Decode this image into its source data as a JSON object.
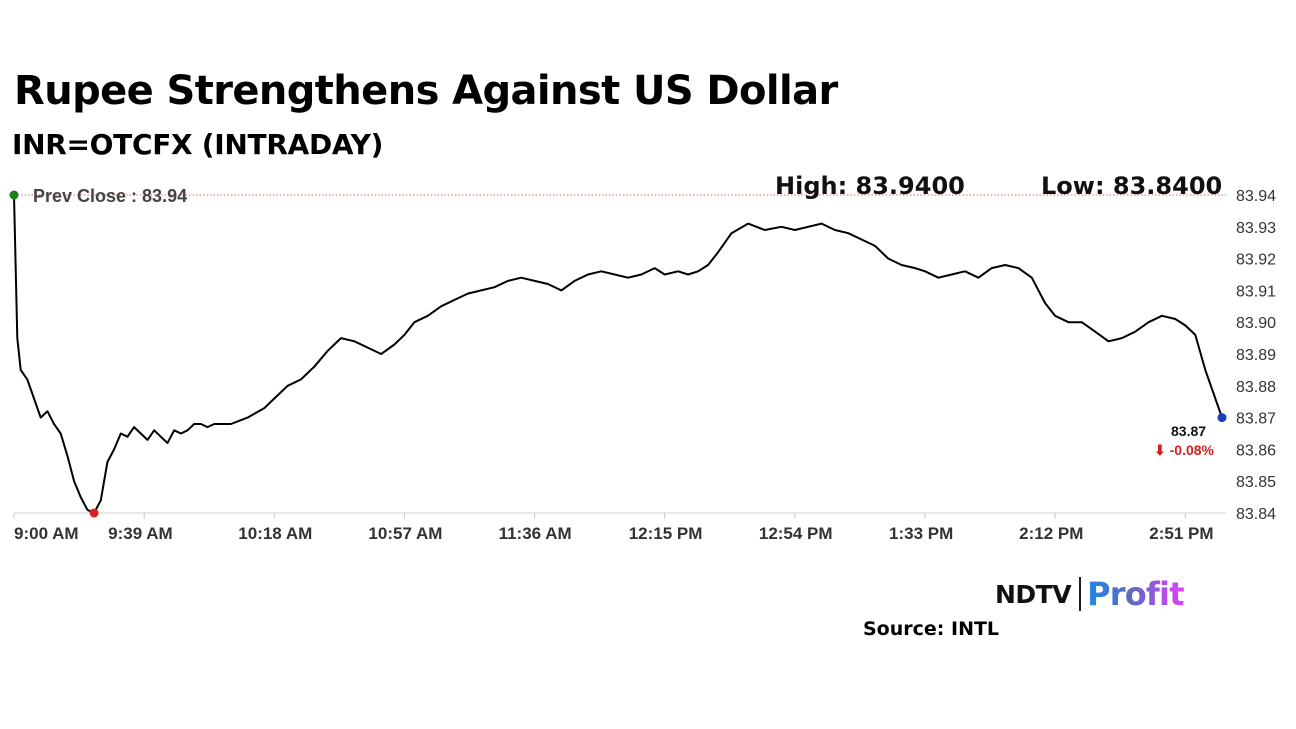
{
  "header": {
    "title": "Rupee Strengthens Against US Dollar",
    "subtitle": "INR=OTCFX (INTRADAY)"
  },
  "chart_data": {
    "type": "line",
    "title": "Rupee Strengthens Against US Dollar",
    "subtitle": "INR=OTCFX (INTRADAY)",
    "prev_close_label": "Prev Close : 83.94",
    "prev_close": 83.94,
    "high_label": "High: 83.9400",
    "low_label": "Low: 83.8400",
    "high": 83.94,
    "low": 83.84,
    "last_value_label": "83.87",
    "change_label": "⬇ -0.08%",
    "last_value": 83.87,
    "change_pct": -0.08,
    "ylim": [
      83.84,
      83.94
    ],
    "y_ticks": [
      "83.94",
      "83.93",
      "83.92",
      "83.91",
      "83.90",
      "83.89",
      "83.88",
      "83.87",
      "83.86",
      "83.85",
      "83.84"
    ],
    "x_ticks": [
      "9:00 AM",
      "9:39 AM",
      "10:18 AM",
      "10:57 AM",
      "11:36 AM",
      "12:15 PM",
      "12:54 PM",
      "1:33 PM",
      "2:12 PM",
      "2:51 PM"
    ],
    "x_start_minutes": 540,
    "x_end_minutes": 902,
    "x_tick_minutes": [
      540,
      579,
      618,
      657,
      696,
      735,
      774,
      813,
      852,
      891
    ],
    "series": [
      {
        "x": [
          "9:00 AM",
          "9:01 AM",
          "9:02 AM",
          "9:04 AM",
          "9:06 AM",
          "9:08 AM",
          "9:10 AM",
          "9:12 AM",
          "9:14 AM",
          "9:16 AM",
          "9:18 AM",
          "9:20 AM",
          "9:22 AM",
          "9:24 AM",
          "9:26 AM",
          "9:28 AM",
          "9:30 AM",
          "9:32 AM",
          "9:34 AM",
          "9:36 AM",
          "9:38 AM",
          "9:40 AM",
          "9:42 AM",
          "9:44 AM",
          "9:46 AM",
          "9:48 AM",
          "9:50 AM",
          "9:52 AM",
          "9:54 AM",
          "9:56 AM",
          "9:58 AM",
          "10:00 AM",
          "10:05 AM",
          "10:10 AM",
          "10:15 AM",
          "10:18 AM",
          "10:22 AM",
          "10:26 AM",
          "10:30 AM",
          "10:34 AM",
          "10:38 AM",
          "10:42 AM",
          "10:46 AM",
          "10:50 AM",
          "10:54 AM",
          "10:57 AM",
          "11:00 AM",
          "11:04 AM",
          "11:08 AM",
          "11:12 AM",
          "11:16 AM",
          "11:20 AM",
          "11:24 AM",
          "11:28 AM",
          "11:32 AM",
          "11:36 AM",
          "11:40 AM",
          "11:44 AM",
          "11:48 AM",
          "11:52 AM",
          "11:56 AM",
          "12:00 PM",
          "12:04 PM",
          "12:08 PM",
          "12:12 PM",
          "12:15 PM",
          "12:19 PM",
          "12:22 PM",
          "12:25 PM",
          "12:28 PM",
          "12:31 PM",
          "12:35 PM",
          "12:40 PM",
          "12:45 PM",
          "12:50 PM",
          "12:54 PM",
          "12:58 PM",
          "1:02 PM",
          "1:06 PM",
          "1:10 PM",
          "1:14 PM",
          "1:18 PM",
          "1:22 PM",
          "1:26 PM",
          "1:30 PM",
          "1:33 PM",
          "1:37 PM",
          "1:41 PM",
          "1:45 PM",
          "1:49 PM",
          "1:53 PM",
          "1:57 PM",
          "2:01 PM",
          "2:05 PM",
          "2:09 PM",
          "2:12 PM",
          "2:16 PM",
          "2:20 PM",
          "2:24 PM",
          "2:28 PM",
          "2:32 PM",
          "2:36 PM",
          "2:40 PM",
          "2:44 PM",
          "2:48 PM",
          "2:51 PM",
          "2:54 PM",
          "2:57 PM",
          "3:00 PM",
          "3:02 PM"
        ],
        "y": [
          83.94,
          83.895,
          83.885,
          83.882,
          83.876,
          83.87,
          83.872,
          83.868,
          83.865,
          83.858,
          83.85,
          83.845,
          83.841,
          83.84,
          83.844,
          83.856,
          83.86,
          83.865,
          83.864,
          83.867,
          83.865,
          83.863,
          83.866,
          83.864,
          83.862,
          83.866,
          83.865,
          83.866,
          83.868,
          83.868,
          83.867,
          83.868,
          83.868,
          83.87,
          83.873,
          83.876,
          83.88,
          83.882,
          83.886,
          83.891,
          83.895,
          83.894,
          83.892,
          83.89,
          83.893,
          83.896,
          83.9,
          83.902,
          83.905,
          83.907,
          83.909,
          83.91,
          83.911,
          83.913,
          83.914,
          83.913,
          83.912,
          83.91,
          83.913,
          83.915,
          83.916,
          83.915,
          83.914,
          83.915,
          83.917,
          83.915,
          83.916,
          83.915,
          83.916,
          83.918,
          83.922,
          83.928,
          83.931,
          83.929,
          83.93,
          83.929,
          83.93,
          83.931,
          83.929,
          83.928,
          83.926,
          83.924,
          83.92,
          83.918,
          83.917,
          83.916,
          83.914,
          83.915,
          83.916,
          83.914,
          83.917,
          83.918,
          83.917,
          83.914,
          83.906,
          83.902,
          83.9,
          83.9,
          83.897,
          83.894,
          83.895,
          83.897,
          83.9,
          83.902,
          83.901,
          83.899,
          83.896,
          83.885,
          83.876,
          83.87
        ]
      }
    ],
    "colors": {
      "line": "#000000",
      "prev_close_line": "#e06666",
      "start_dot": "#1a7f1a",
      "low_dot": "#e02020",
      "last_dot": "#1a3fbf",
      "change_text": "#d42020",
      "axis_text": "#333333"
    }
  },
  "footer": {
    "logo_ndtv": "NDTV",
    "logo_profit": "Profit",
    "source": "Source: INTL"
  }
}
